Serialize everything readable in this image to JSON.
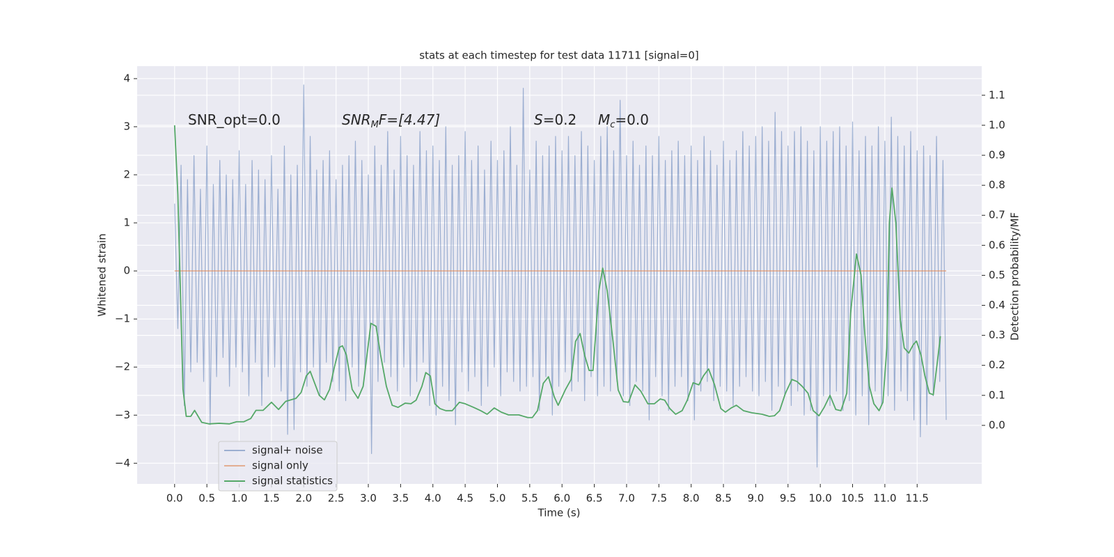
{
  "chart_data": {
    "type": "line",
    "title": "stats at each timestep for test data 11711 [signal=0]",
    "x_label": "Time (s)",
    "y_label": "Whitened strain",
    "y2_label": "Detection probability/MF",
    "annotations": [
      [
        "SNR_opt=0.0"
      ],
      [
        "SNR",
        "M",
        "F=[4.47]"
      ],
      [
        "S",
        "=0.2"
      ],
      [
        "M",
        "c",
        "=0.0"
      ]
    ],
    "grid": true,
    "legend": "lower left",
    "xlim": [
      -0.58,
      12.5
    ],
    "ylim": [
      -4.43,
      4.26
    ],
    "y2lim": [
      -0.195,
      1.197
    ],
    "xticks": [
      {
        "value": 0,
        "label": "0.0"
      },
      0.5,
      {
        "value": 1,
        "label": "1.0"
      },
      1.5,
      {
        "value": 2,
        "label": "2.0"
      },
      2.5,
      {
        "value": 3,
        "label": "3.0"
      },
      3.5,
      {
        "value": 4,
        "label": "4.0"
      },
      4.5,
      {
        "value": 5,
        "label": "5.0"
      },
      5.5,
      {
        "value": 6,
        "label": "6.0"
      },
      6.5,
      {
        "value": 7,
        "label": "7.0"
      },
      7.5,
      {
        "value": 8,
        "label": "8.0"
      },
      8.5,
      {
        "value": 9,
        "label": "9.0"
      },
      9.5,
      {
        "value": 10,
        "label": "10.0"
      },
      10.5,
      {
        "value": 11,
        "label": "11.0"
      },
      11.5
    ],
    "yticks": [
      {
        "value": -4,
        "label": "−4"
      },
      {
        "value": -3,
        "label": "−3"
      },
      {
        "value": -2,
        "label": "−2"
      },
      {
        "value": -1,
        "label": "−1"
      },
      0,
      1,
      2,
      3,
      4
    ],
    "y2ticks": [
      {
        "value": 0,
        "label": "0.0"
      },
      0.1,
      0.2,
      0.3,
      0.4,
      0.5,
      0.6,
      0.7,
      0.8,
      0.9,
      {
        "value": 1,
        "label": "1.0"
      },
      1.1
    ],
    "series": [
      {
        "name": "signal+ noise",
        "color": "#4c72b0",
        "opacity": 0.5,
        "x": [
          0,
          0.05,
          0.1,
          0.15,
          0.2,
          0.25,
          0.3,
          0.35,
          0.4,
          0.45,
          0.5,
          0.55,
          0.6,
          0.65,
          0.7,
          0.75,
          0.8,
          0.85,
          0.9,
          0.95,
          1,
          1.05,
          1.1,
          1.15,
          1.2,
          1.25,
          1.3,
          1.35,
          1.4,
          1.45,
          1.5,
          1.55,
          1.6,
          1.65,
          1.7,
          1.75,
          1.8,
          1.85,
          1.9,
          1.95,
          2,
          2.05,
          2.1,
          2.15,
          2.2,
          2.25,
          2.3,
          2.35,
          2.4,
          2.45,
          2.5,
          2.55,
          2.6,
          2.65,
          2.7,
          2.75,
          2.8,
          2.85,
          2.9,
          2.95,
          3,
          3.05,
          3.1,
          3.15,
          3.2,
          3.25,
          3.3,
          3.35,
          3.4,
          3.45,
          3.5,
          3.55,
          3.6,
          3.65,
          3.7,
          3.75,
          3.8,
          3.85,
          3.9,
          3.95,
          4,
          4.05,
          4.1,
          4.15,
          4.2,
          4.25,
          4.3,
          4.35,
          4.4,
          4.45,
          4.5,
          4.55,
          4.6,
          4.65,
          4.7,
          4.75,
          4.8,
          4.85,
          4.9,
          4.95,
          5,
          5.05,
          5.1,
          5.15,
          5.2,
          5.25,
          5.3,
          5.35,
          5.4,
          5.45,
          5.5,
          5.55,
          5.6,
          5.65,
          5.7,
          5.75,
          5.8,
          5.85,
          5.9,
          5.95,
          6,
          6.05,
          6.1,
          6.15,
          6.2,
          6.25,
          6.3,
          6.35,
          6.4,
          6.45,
          6.5,
          6.55,
          6.6,
          6.65,
          6.7,
          6.75,
          6.8,
          6.85,
          6.9,
          6.95,
          7,
          7.05,
          7.1,
          7.15,
          7.2,
          7.25,
          7.3,
          7.35,
          7.4,
          7.45,
          7.5,
          7.55,
          7.6,
          7.65,
          7.7,
          7.75,
          7.8,
          7.85,
          7.9,
          7.95,
          8,
          8.05,
          8.1,
          8.15,
          8.2,
          8.25,
          8.3,
          8.35,
          8.4,
          8.45,
          8.5,
          8.55,
          8.6,
          8.65,
          8.7,
          8.75,
          8.8,
          8.85,
          8.9,
          8.95,
          9,
          9.05,
          9.1,
          9.15,
          9.2,
          9.25,
          9.3,
          9.35,
          9.4,
          9.45,
          9.5,
          9.55,
          9.6,
          9.65,
          9.7,
          9.75,
          9.8,
          9.85,
          9.9,
          9.95,
          10,
          10.05,
          10.1,
          10.15,
          10.2,
          10.25,
          10.3,
          10.35,
          10.4,
          10.45,
          10.5,
          10.55,
          10.6,
          10.65,
          10.7,
          10.75,
          10.8,
          10.85,
          10.9,
          10.95,
          11,
          11.05,
          11.1,
          11.15,
          11.2,
          11.25,
          11.3,
          11.35,
          11.4,
          11.45,
          11.5,
          11.55,
          11.6,
          11.65,
          11.7,
          11.75,
          11.8,
          11.85,
          11.9,
          11.95
        ],
        "values": [
          1.4,
          -1.2,
          2.2,
          -2.8,
          1.9,
          -2.1,
          2.4,
          -1.9,
          1.7,
          -2.3,
          2.6,
          -3.2,
          1.8,
          -2.2,
          2.3,
          -1.8,
          2.0,
          -2.4,
          1.9,
          -2.0,
          2.5,
          -2.1,
          1.8,
          -2.6,
          2.3,
          -1.9,
          2.1,
          -2.8,
          1.9,
          -2.2,
          2.4,
          -2.0,
          1.7,
          -2.5,
          2.6,
          -3.4,
          2.0,
          -3.3,
          2.2,
          -2.1,
          3.87,
          -2.4,
          2.8,
          -2.0,
          2.1,
          -2.6,
          2.3,
          -1.9,
          2.5,
          -2.3,
          1.9,
          -2.5,
          2.2,
          -2.7,
          2.4,
          -2.0,
          2.7,
          -2.4,
          2.3,
          -2.1,
          2.0,
          -3.8,
          2.6,
          -2.3,
          2.2,
          -1.9,
          2.9,
          -2.2,
          2.1,
          -2.5,
          2.8,
          -2.0,
          2.4,
          -2.6,
          2.2,
          -2.3,
          2.9,
          -1.9,
          2.5,
          -2.8,
          2.6,
          -3.0,
          2.3,
          -2.4,
          3.0,
          -2.7,
          2.2,
          -3.2,
          2.4,
          -2.1,
          2.9,
          -2.5,
          2.3,
          -2.2,
          2.6,
          -2.8,
          2.1,
          -2.4,
          2.7,
          -2.0,
          2.3,
          -2.6,
          2.5,
          -2.1,
          3.0,
          -2.3,
          2.2,
          -2.5,
          3.8,
          -2.4,
          2.1,
          -2.2,
          2.7,
          -2.9,
          2.4,
          -2.2,
          2.6,
          -3.0,
          2.8,
          -2.4,
          2.5,
          -2.1,
          2.8,
          -2.5,
          2.4,
          -2.3,
          2.9,
          -2.7,
          2.6,
          -2.2,
          2.3,
          -2.6,
          2.8,
          -2.4,
          3.0,
          -2.5,
          2.5,
          -2.3,
          3.55,
          -2.6,
          2.4,
          -2.8,
          2.7,
          -2.3,
          2.2,
          -2.5,
          2.6,
          -3.1,
          2.4,
          -2.2,
          2.8,
          -2.6,
          2.3,
          -2.9,
          2.5,
          -2.4,
          2.7,
          -2.2,
          2.4,
          -2.7,
          2.6,
          -3.1,
          2.3,
          -2.5,
          2.8,
          -2.3,
          2.5,
          -2.7,
          2.2,
          -2.4,
          2.7,
          -2.5,
          2.3,
          -2.8,
          2.5,
          -2.4,
          2.9,
          -2.2,
          2.6,
          -2.5,
          2.8,
          -2.6,
          3.0,
          -2.3,
          2.7,
          -2.9,
          3.3,
          -2.4,
          2.9,
          -2.6,
          2.6,
          -2.8,
          2.9,
          -2.5,
          3.0,
          -3.0,
          2.7,
          -2.9,
          2.5,
          -4.08,
          3.0,
          -2.6,
          2.7,
          -2.8,
          2.9,
          -2.5,
          3.0,
          -2.9,
          2.6,
          -2.7,
          3.1,
          -3.0,
          2.5,
          -2.6,
          2.8,
          -3.2,
          2.6,
          -2.5,
          3.0,
          -2.8,
          2.7,
          -2.6,
          3.2,
          -2.9,
          2.8,
          -2.5,
          2.6,
          -2.7,
          2.9,
          -3.1,
          2.5,
          -3.45,
          2.6,
          -3.2,
          2.4,
          -2.6,
          2.8,
          -2.3,
          2.3,
          -3.1
        ]
      },
      {
        "name": "signal only",
        "color": "#dd8452",
        "opacity": 0.6,
        "x": [
          0,
          11.95
        ],
        "values": [
          0,
          0
        ]
      },
      {
        "name": "signal statistics",
        "color": "#55a868",
        "opacity": 1,
        "axis": "y2",
        "x": [
          0,
          0.05,
          0.13,
          0.18,
          0.25,
          0.31,
          0.42,
          0.53,
          0.69,
          0.85,
          0.96,
          1.07,
          1.18,
          1.26,
          1.37,
          1.5,
          1.61,
          1.72,
          1.88,
          1.96,
          2.04,
          2.1,
          2.17,
          2.24,
          2.32,
          2.4,
          2.47,
          2.55,
          2.6,
          2.66,
          2.75,
          2.84,
          2.92,
          2.98,
          3.04,
          3.12,
          3.19,
          3.28,
          3.37,
          3.46,
          3.57,
          3.66,
          3.74,
          3.83,
          3.89,
          3.96,
          4.03,
          4.11,
          4.2,
          4.3,
          4.41,
          4.5,
          4.63,
          4.74,
          4.84,
          4.95,
          5.06,
          5.17,
          5.33,
          5.47,
          5.54,
          5.62,
          5.71,
          5.79,
          5.88,
          5.94,
          6.05,
          6.14,
          6.21,
          6.28,
          6.35,
          6.42,
          6.48,
          6.57,
          6.63,
          6.7,
          6.79,
          6.87,
          6.95,
          7.03,
          7.13,
          7.22,
          7.33,
          7.43,
          7.52,
          7.59,
          7.67,
          7.76,
          7.86,
          7.94,
          8.03,
          8.12,
          8.19,
          8.27,
          8.36,
          8.46,
          8.53,
          8.62,
          8.7,
          8.81,
          8.94,
          9.1,
          9.21,
          9.29,
          9.37,
          9.46,
          9.56,
          9.64,
          9.72,
          9.81,
          9.89,
          9.98,
          10.06,
          10.15,
          10.24,
          10.32,
          10.41,
          10.47,
          10.56,
          10.63,
          10.69,
          10.76,
          10.83,
          10.91,
          10.97,
          11.03,
          11.07,
          11.11,
          11.17,
          11.24,
          11.3,
          11.37,
          11.44,
          11.49,
          11.56,
          11.62,
          11.69,
          11.75,
          11.8,
          11.86
        ],
        "values": [
          1.0,
          0.77,
          0.12,
          0.03,
          0.03,
          0.05,
          0.01,
          0.005,
          0.007,
          0.005,
          0.012,
          0.012,
          0.023,
          0.05,
          0.05,
          0.077,
          0.053,
          0.08,
          0.09,
          0.11,
          0.165,
          0.18,
          0.14,
          0.1,
          0.085,
          0.12,
          0.19,
          0.26,
          0.265,
          0.235,
          0.12,
          0.09,
          0.13,
          0.235,
          0.34,
          0.33,
          0.235,
          0.13,
          0.067,
          0.06,
          0.074,
          0.072,
          0.084,
          0.13,
          0.176,
          0.165,
          0.072,
          0.056,
          0.049,
          0.049,
          0.077,
          0.072,
          0.06,
          0.049,
          0.037,
          0.058,
          0.044,
          0.035,
          0.035,
          0.026,
          0.026,
          0.049,
          0.14,
          0.162,
          0.095,
          0.067,
          0.118,
          0.153,
          0.28,
          0.306,
          0.234,
          0.183,
          0.183,
          0.448,
          0.524,
          0.448,
          0.28,
          0.118,
          0.079,
          0.077,
          0.135,
          0.114,
          0.072,
          0.072,
          0.088,
          0.084,
          0.056,
          0.037,
          0.049,
          0.084,
          0.142,
          0.135,
          0.165,
          0.188,
          0.137,
          0.056,
          0.044,
          0.058,
          0.067,
          0.049,
          0.042,
          0.037,
          0.03,
          0.032,
          0.049,
          0.107,
          0.153,
          0.146,
          0.13,
          0.107,
          0.049,
          0.032,
          0.06,
          0.1,
          0.053,
          0.049,
          0.107,
          0.374,
          0.571,
          0.501,
          0.304,
          0.13,
          0.072,
          0.049,
          0.077,
          0.258,
          0.675,
          0.791,
          0.675,
          0.35,
          0.258,
          0.241,
          0.269,
          0.281,
          0.234,
          0.165,
          0.107,
          0.102,
          0.188,
          0.297
        ]
      }
    ]
  }
}
